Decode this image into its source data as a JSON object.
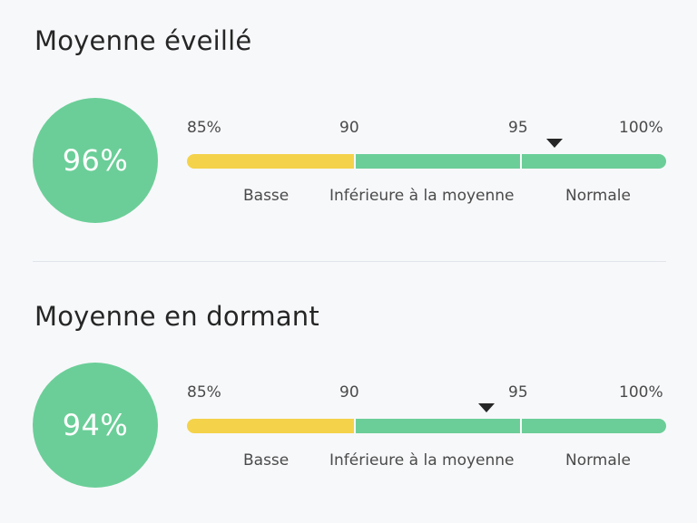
{
  "awake": {
    "title": "Moyenne éveillé",
    "value_label": "96%",
    "value": 96,
    "scale": {
      "ticks": [
        "85%",
        "90",
        "95",
        "100%"
      ],
      "categories": [
        "Basse",
        "Inférieure à la moyenne",
        "Normale"
      ]
    }
  },
  "asleep": {
    "title": "Moyenne en dormant",
    "value_label": "94%",
    "value": 94,
    "scale": {
      "ticks": [
        "85%",
        "90",
        "95",
        "100%"
      ],
      "categories": [
        "Basse",
        "Inférieure à la moyenne",
        "Normale"
      ]
    }
  },
  "colors": {
    "accent_green": "#6bce98",
    "low_yellow": "#f4d24a",
    "marker": "#262626"
  }
}
